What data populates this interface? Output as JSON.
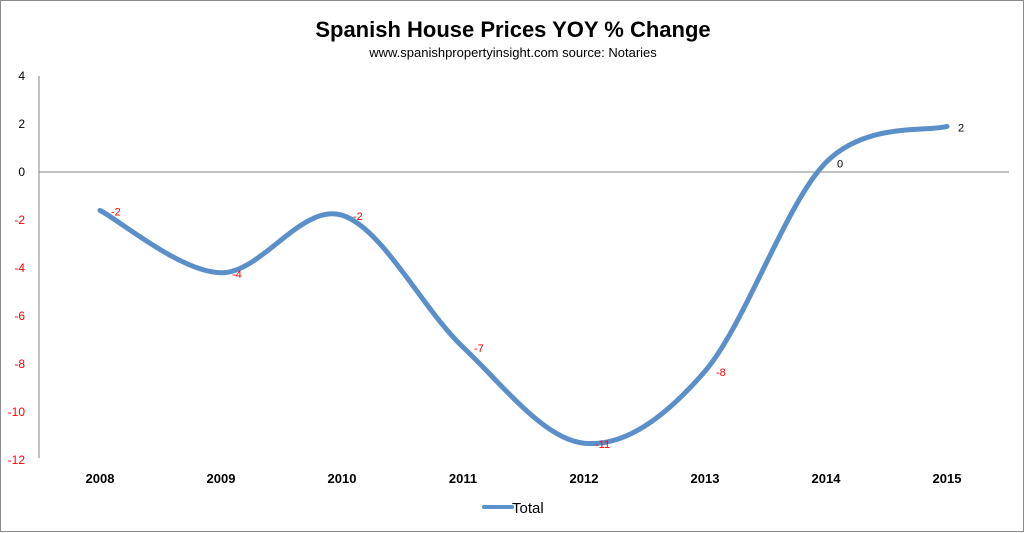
{
  "chart_data": {
    "type": "line",
    "title": "Spanish House Prices YOY % Change",
    "subtitle": "www.spanishpropertyinsight.com source: Notaries",
    "categories": [
      "2008",
      "2009",
      "2010",
      "2011",
      "2012",
      "2013",
      "2014",
      "2015"
    ],
    "series": [
      {
        "name": "Total",
        "values": [
          -1.6,
          -4.2,
          -1.8,
          -7.3,
          -11.3,
          -8.3,
          0.4,
          1.9
        ],
        "labels": [
          "-2",
          "-4",
          "-2",
          "-7",
          "-11",
          "-8",
          "0",
          "2"
        ],
        "color": "#5b8fc9"
      }
    ],
    "yticks": [
      "4",
      "2",
      "0",
      "-2",
      "-4",
      "-6",
      "-8",
      "-10",
      "-12"
    ],
    "ylim": [
      -12,
      4
    ],
    "grid": false,
    "legend": "bottom",
    "colors": {
      "negative": "#ff0000",
      "positive": "#000000",
      "axis": "#868686"
    }
  }
}
